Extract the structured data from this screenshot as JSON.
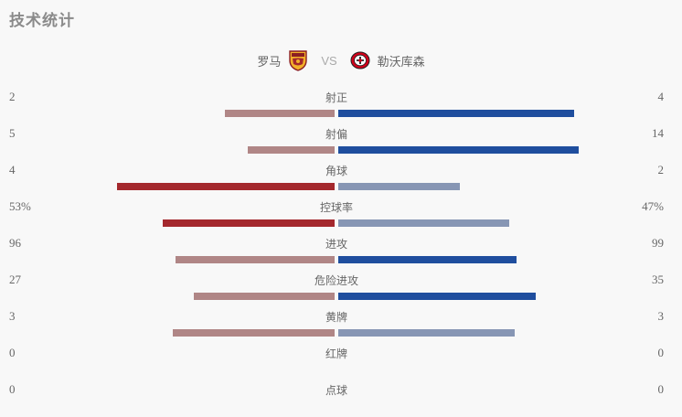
{
  "title": "技术统计",
  "home": {
    "name": "罗马",
    "crest_icon": "roma-crest-icon"
  },
  "vs": "VS",
  "away": {
    "name": "勒沃库森",
    "crest_icon": "leverkusen-crest-icon"
  },
  "colors": {
    "home_strong": "#a4282d",
    "home_weak": "#b08686",
    "away_strong": "#1f4e9e",
    "away_weak": "#8796b4"
  },
  "stats": [
    {
      "label": "射正",
      "home": "2",
      "away": "4",
      "home_share": 0.503,
      "away_share": 0.981,
      "leader": "away"
    },
    {
      "label": "射偏",
      "home": "5",
      "away": "14",
      "home_share": 0.4,
      "away_share": 1.0,
      "leader": "away"
    },
    {
      "label": "角球",
      "home": "4",
      "away": "2",
      "home_share": 1.0,
      "away_share": 0.505,
      "leader": "home"
    },
    {
      "label": "控球率",
      "home": "53%",
      "away": "47%",
      "home_share": 0.79,
      "away_share": 0.71,
      "leader": "home"
    },
    {
      "label": "进攻",
      "home": "96",
      "away": "99",
      "home_share": 0.729,
      "away_share": 0.74,
      "leader": "away"
    },
    {
      "label": "危险进攻",
      "home": "27",
      "away": "35",
      "home_share": 0.646,
      "away_share": 0.823,
      "leader": "away"
    },
    {
      "label": "黄牌",
      "home": "3",
      "away": "3",
      "home_share": 0.742,
      "away_share": 0.733,
      "leader": "none"
    },
    {
      "label": "红牌",
      "home": "0",
      "away": "0",
      "home_share": 0,
      "away_share": 0,
      "leader": "none"
    },
    {
      "label": "点球",
      "home": "0",
      "away": "0",
      "home_share": 0,
      "away_share": 0,
      "leader": "none"
    }
  ]
}
